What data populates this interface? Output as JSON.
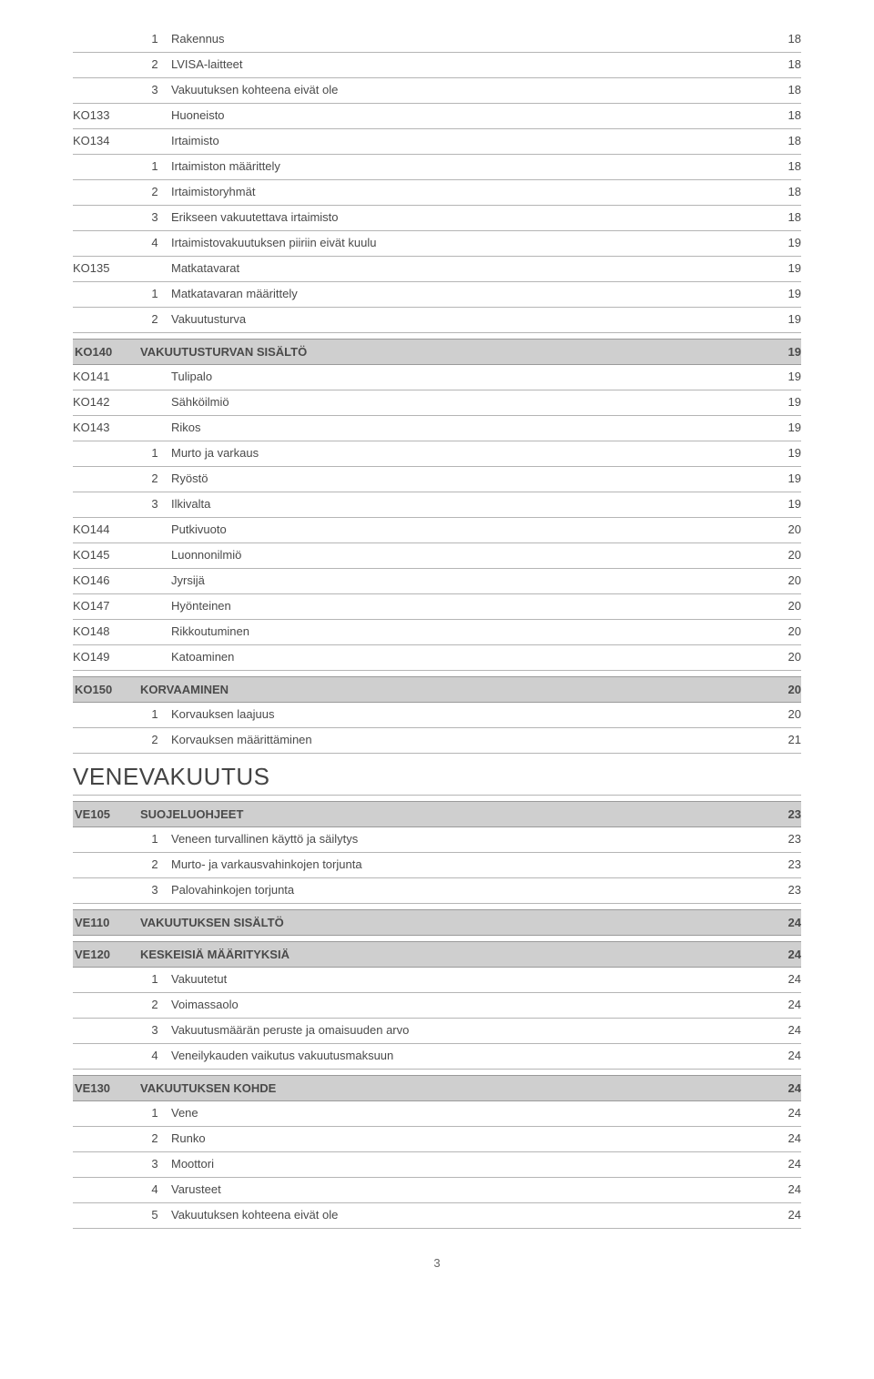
{
  "colors": {
    "row_border": "#b5b5b5",
    "header_bg": "#cfcfcf",
    "text": "#4a4a4a"
  },
  "page_number": "3",
  "rows_top": [
    {
      "num": "1",
      "label": "Rakennus",
      "page": "18"
    },
    {
      "num": "2",
      "label": "LVISA-laitteet",
      "page": "18"
    },
    {
      "num": "3",
      "label": "Vakuutuksen kohteena eivät ole",
      "page": "18"
    }
  ],
  "ko_pre": [
    {
      "code": "KO133",
      "label": "Huoneisto",
      "page": "18"
    },
    {
      "code": "KO134",
      "label": "Irtaimisto",
      "page": "18"
    }
  ],
  "ko134_sub": [
    {
      "num": "1",
      "label": "Irtaimiston määrittely",
      "page": "18"
    },
    {
      "num": "2",
      "label": "Irtaimistoryhmät",
      "page": "18"
    },
    {
      "num": "3",
      "label": "Erikseen vakuutettava irtaimisto",
      "page": "18"
    },
    {
      "num": "4",
      "label": "Irtaimistovakuutuksen piiriin eivät kuulu",
      "page": "19"
    }
  ],
  "ko135": {
    "code": "KO135",
    "label": "Matkatavarat",
    "page": "19"
  },
  "ko135_sub": [
    {
      "num": "1",
      "label": "Matkatavaran määrittely",
      "page": "19"
    },
    {
      "num": "2",
      "label": "Vakuutusturva",
      "page": "19"
    }
  ],
  "ko140_header": {
    "code": "KO140",
    "label": "VAKUUTUSTURVAN SISÄLTÖ",
    "page": "19"
  },
  "ko140_rows": [
    {
      "code": "KO141",
      "label": "Tulipalo",
      "page": "19"
    },
    {
      "code": "KO142",
      "label": "Sähköilmiö",
      "page": "19"
    },
    {
      "code": "KO143",
      "label": "Rikos",
      "page": "19"
    }
  ],
  "ko143_sub": [
    {
      "num": "1",
      "label": "Murto ja varkaus",
      "page": "19"
    },
    {
      "num": "2",
      "label": "Ryöstö",
      "page": "19"
    },
    {
      "num": "3",
      "label": "Ilkivalta",
      "page": "19"
    }
  ],
  "ko140_rows2": [
    {
      "code": "KO144",
      "label": "Putkivuoto",
      "page": "20"
    },
    {
      "code": "KO145",
      "label": "Luonnonilmiö",
      "page": "20"
    },
    {
      "code": "KO146",
      "label": "Jyrsijä",
      "page": "20"
    },
    {
      "code": "KO147",
      "label": "Hyönteinen",
      "page": "20"
    },
    {
      "code": "KO148",
      "label": "Rikkoutuminen",
      "page": "20"
    },
    {
      "code": "KO149",
      "label": "Katoaminen",
      "page": "20"
    }
  ],
  "ko150_header": {
    "code": "KO150",
    "label": "KORVAAMINEN",
    "page": "20"
  },
  "ko150_sub": [
    {
      "num": "1",
      "label": "Korvauksen laajuus",
      "page": "20"
    },
    {
      "num": "2",
      "label": "Korvauksen määrittäminen",
      "page": "21"
    }
  ],
  "vene_heading": "VENEVAKUUTUS",
  "ve105_header": {
    "code": "VE105",
    "label": "SUOJELUOHJEET",
    "page": "23"
  },
  "ve105_sub": [
    {
      "num": "1",
      "label": "Veneen turvallinen käyttö ja säilytys",
      "page": "23"
    },
    {
      "num": "2",
      "label": "Murto- ja varkausvahinkojen torjunta",
      "page": "23"
    },
    {
      "num": "3",
      "label": "Palovahinkojen torjunta",
      "page": "23"
    }
  ],
  "ve110_header": {
    "code": "VE110",
    "label": "VAKUUTUKSEN SISÄLTÖ",
    "page": "24"
  },
  "ve120_header": {
    "code": "VE120",
    "label": "KESKEISIÄ MÄÄRITYKSIÄ",
    "page": "24"
  },
  "ve120_sub": [
    {
      "num": "1",
      "label": "Vakuutetut",
      "page": "24"
    },
    {
      "num": "2",
      "label": "Voimassaolo",
      "page": "24"
    },
    {
      "num": "3",
      "label": "Vakuutusmäärän peruste ja omaisuuden  arvo",
      "page": "24"
    },
    {
      "num": "4",
      "label": "Veneilykauden vaikutus vakuutusmaksuun",
      "page": "24"
    }
  ],
  "ve130_header": {
    "code": "VE130",
    "label": "VAKUUTUKSEN KOHDE",
    "page": "24"
  },
  "ve130_sub": [
    {
      "num": "1",
      "label": "Vene",
      "page": "24"
    },
    {
      "num": "2",
      "label": "Runko",
      "page": "24"
    },
    {
      "num": "3",
      "label": "Moottori",
      "page": "24"
    },
    {
      "num": "4",
      "label": "Varusteet",
      "page": "24"
    },
    {
      "num": "5",
      "label": "Vakuutuksen kohteena eivät ole",
      "page": "24"
    }
  ]
}
